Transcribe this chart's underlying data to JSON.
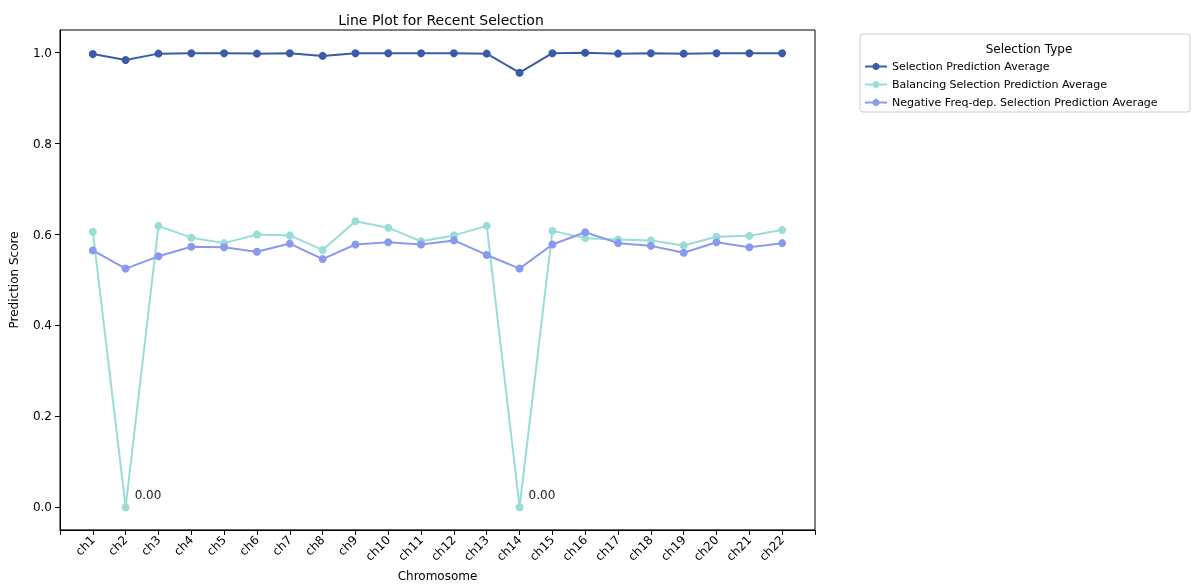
{
  "chart_data": {
    "type": "line",
    "title": "Line Plot for Recent Selection",
    "xlabel": "Chromosome",
    "ylabel": "Prediction Score",
    "legend_title": "Selection Type",
    "categories": [
      "ch1",
      "ch2",
      "ch3",
      "ch4",
      "ch5",
      "ch6",
      "ch7",
      "ch8",
      "ch9",
      "ch10",
      "ch11",
      "ch12",
      "ch13",
      "ch14",
      "ch15",
      "ch16",
      "ch17",
      "ch18",
      "ch19",
      "ch20",
      "ch21",
      "ch22"
    ],
    "series": [
      {
        "name": "Selection Prediction Average",
        "color": "#3a5ba8",
        "values": [
          0.997,
          0.984,
          0.998,
          0.999,
          0.999,
          0.998,
          0.999,
          0.993,
          0.999,
          0.999,
          0.999,
          0.999,
          0.998,
          0.956,
          0.999,
          1.0,
          0.998,
          0.999,
          0.998,
          0.999,
          0.999,
          0.999
        ]
      },
      {
        "name": "Balancing Selection Prediction Average",
        "color": "#98ddd6",
        "values": [
          0.606,
          0.0,
          0.619,
          0.593,
          0.581,
          0.6,
          0.598,
          0.566,
          0.629,
          0.615,
          0.585,
          0.598,
          0.619,
          0.0,
          0.608,
          0.592,
          0.589,
          0.587,
          0.576,
          0.595,
          0.597,
          0.61
        ],
        "value_labels": [
          null,
          "0.00",
          null,
          null,
          null,
          null,
          null,
          null,
          null,
          null,
          null,
          null,
          null,
          "0.00",
          null,
          null,
          null,
          null,
          null,
          null,
          null,
          null
        ]
      },
      {
        "name": "Negative Freq-dep. Selection Prediction Average",
        "color": "#8899ee",
        "values": [
          0.565,
          0.525,
          0.552,
          0.573,
          0.572,
          0.562,
          0.58,
          0.546,
          0.578,
          0.583,
          0.578,
          0.587,
          0.555,
          0.525,
          0.578,
          0.605,
          0.581,
          0.575,
          0.56,
          0.583,
          0.572,
          0.581
        ]
      }
    ],
    "ylim": [
      -0.05,
      1.05
    ],
    "yticks": [
      {
        "value": 0,
        "label": "0.0"
      },
      {
        "value": 0.2,
        "label": "0.2"
      },
      {
        "value": 0.4,
        "label": "0.4"
      },
      {
        "value": 0.6,
        "label": "0.6"
      },
      {
        "value": 0.8,
        "label": "0.8"
      },
      {
        "value": 1,
        "label": "1.0"
      }
    ],
    "grid": false,
    "legend": "top right",
    "marker": "circle",
    "line_style": "solid"
  }
}
